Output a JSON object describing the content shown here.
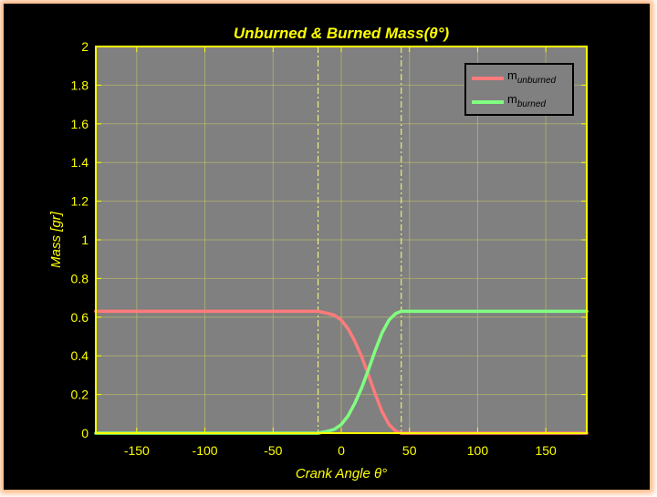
{
  "colors": {
    "background": "#000000",
    "plot_area": "#808080",
    "axis": "#ffff00",
    "grid": "#c8c864",
    "unburned": "#ff7a7a",
    "burned": "#80ff80",
    "marker_lines": "#ffff80",
    "legend_bg": "#808080"
  },
  "chart_data": {
    "type": "line",
    "title": "Unburned & Burned Mass(θ°)",
    "xlabel": "Crank Angle θ°",
    "ylabel": "Mass [gr]",
    "xlim": [
      -180,
      180
    ],
    "ylim": [
      0,
      2
    ],
    "xticks": [
      -150,
      -100,
      -50,
      0,
      50,
      100,
      150
    ],
    "yticks": [
      0,
      0.2,
      0.4,
      0.6,
      0.8,
      1,
      1.2,
      1.4,
      1.6,
      1.8,
      2
    ],
    "grid": true,
    "legend_position": "top-right",
    "combustion_start": -17,
    "combustion_end": 44,
    "series": [
      {
        "name": "m",
        "name_sub": "unburned",
        "x": [
          -180,
          -17,
          -10,
          -5,
          0,
          5,
          10,
          15,
          20,
          25,
          30,
          35,
          40,
          44,
          180
        ],
        "y": [
          0.63,
          0.63,
          0.62,
          0.61,
          0.585,
          0.54,
          0.475,
          0.395,
          0.3,
          0.2,
          0.11,
          0.045,
          0.01,
          0,
          0
        ]
      },
      {
        "name": "m",
        "name_sub": "burned",
        "x": [
          -180,
          -17,
          -10,
          -5,
          0,
          5,
          10,
          15,
          20,
          25,
          30,
          35,
          40,
          44,
          180
        ],
        "y": [
          0,
          0,
          0.01,
          0.02,
          0.045,
          0.09,
          0.155,
          0.235,
          0.33,
          0.43,
          0.52,
          0.585,
          0.62,
          0.63,
          0.63
        ]
      }
    ]
  }
}
